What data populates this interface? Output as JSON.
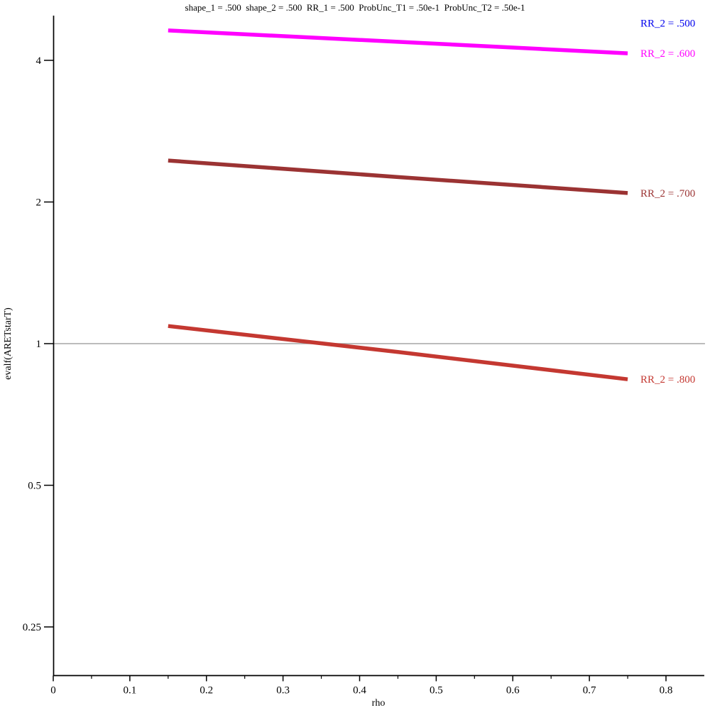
{
  "title": "shape_1 = .500  shape_2 = .500  RR_1 = .500  ProbUnc_T1 = .50e-1  ProbUnc_T2 = .50e-1",
  "chart_data": {
    "type": "line",
    "title": "shape_1 = .500  shape_2 = .500  RR_1 = .500  ProbUnc_T1 = .50e-1  ProbUnc_T2 = .50e-1",
    "xlabel": "rho",
    "ylabel": "evalf(ARETstarT)",
    "x_axis": {
      "min": 0,
      "max": 0.85,
      "major_ticks": [
        0,
        0.1,
        0.2,
        0.3,
        0.4,
        0.5,
        0.6,
        0.7,
        0.8
      ],
      "major_tick_labels": [
        "0",
        "0.1",
        "0.2",
        "0.3",
        "0.4",
        "0.5",
        "0.6",
        "0.7",
        "0.8"
      ],
      "minor_ticks": [
        0.05,
        0.15,
        0.25,
        0.35,
        0.45,
        0.55,
        0.65,
        0.75
      ]
    },
    "y_axis": {
      "scale": "log2",
      "min": 0.2,
      "max": 5.0,
      "ticks": [
        4,
        2,
        1,
        0.5,
        0.25
      ],
      "tick_labels": [
        "4",
        "2",
        "1",
        "0.5",
        "0.25"
      ]
    },
    "reference_line": {
      "y": 1,
      "color": "#A6A6A6"
    },
    "grid": "off",
    "legend_position": "right-of-curve-ends",
    "axis_color": "#000000",
    "series": [
      {
        "label": "RR_2 = .500",
        "color": "#0000EE",
        "visible_line": false,
        "label_y": 4.8,
        "x": [],
        "y": []
      },
      {
        "label": "RR_2 = .600",
        "color": "#FF00FF",
        "visible_line": true,
        "x": [
          0.15,
          0.45,
          0.75
        ],
        "y": [
          4.63,
          4.38,
          4.14
        ]
      },
      {
        "label": "RR_2 = .700",
        "color": "#9B3333",
        "visible_line": true,
        "x": [
          0.15,
          0.45,
          0.75
        ],
        "y": [
          2.45,
          2.26,
          2.09
        ]
      },
      {
        "label": "RR_2 = .800",
        "color": "#C43831",
        "visible_line": true,
        "x": [
          0.15,
          0.45,
          0.75
        ],
        "y": [
          1.09,
          0.96,
          0.84
        ]
      }
    ]
  }
}
